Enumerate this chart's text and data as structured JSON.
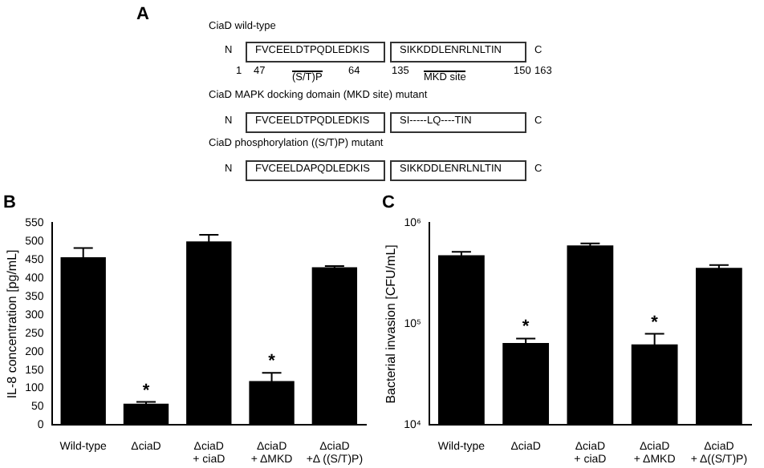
{
  "chart_data": [
    {
      "type": "other",
      "title": "A",
      "annotations": [
        "CiaD wild-type",
        "N",
        "FVCEELDTPQDLEDKIS",
        "SIKKDDLENRLNLTIN",
        "C",
        "1",
        "47",
        "(S/T)P",
        "64",
        "135",
        "MKD site",
        "150",
        "163",
        "CiaD MAPK docking domain (MKD site) mutant",
        "N",
        "FVCEELDTPQDLEDKIS",
        "SI-----LQ----TIN",
        "C",
        "CiaD phosphorylation ((S/T)P) mutant",
        "N",
        "FVCEELDAPQDLEDKIS",
        "SIKKDDLENRLNLTIN",
        "C"
      ]
    },
    {
      "type": "bar",
      "title": "B",
      "ylabel": "IL-8 concentration [pg/mL]",
      "categories": [
        "Wild-type",
        "ΔciaD",
        "ΔciaD\n+ ciaD",
        "ΔciaD\n+ ΔMKD",
        "ΔciaD\n+Δ ((S/T)P)"
      ],
      "values": [
        457,
        58,
        500,
        120,
        430
      ],
      "errors": [
        25,
        5,
        18,
        22,
        3
      ],
      "color": "#000000",
      "ylim": [
        0,
        550
      ],
      "yticks": [
        0,
        50,
        100,
        150,
        200,
        250,
        300,
        350,
        400,
        450,
        500,
        550
      ],
      "grid": false,
      "legend": false,
      "annotations": [
        {
          "text": "*",
          "x": "ΔciaD",
          "y": 63
        },
        {
          "text": "*",
          "x": "ΔciaD\n+ ΔMKD",
          "y": 142
        }
      ]
    },
    {
      "type": "bar",
      "title": "C",
      "ylabel": "Bacterial invasion [CFU/mL]",
      "categories": [
        "Wild-type",
        "ΔciaD",
        "ΔciaD\n+ ciaD",
        "ΔciaD\n+ ΔMKD",
        "ΔciaD\n+ Δ((S/T)P)"
      ],
      "values": [
        480000,
        65000,
        600000,
        63000,
        360000
      ],
      "errors": [
        40000,
        7000,
        30000,
        17000,
        25000
      ],
      "color": "#000000",
      "log": "y",
      "ylim": [
        10000,
        1000000
      ],
      "yticks": [
        {
          "value": 10000,
          "label": "10⁴"
        },
        {
          "value": 100000,
          "label": "10⁵"
        },
        {
          "value": 1000000,
          "label": "10⁶"
        }
      ],
      "grid": false,
      "legend": false,
      "annotations": [
        {
          "text": "*",
          "x": "ΔciaD",
          "y": 72000
        },
        {
          "text": "*",
          "x": "ΔciaD\n+ ΔMKD",
          "y": 80000
        }
      ]
    }
  ]
}
